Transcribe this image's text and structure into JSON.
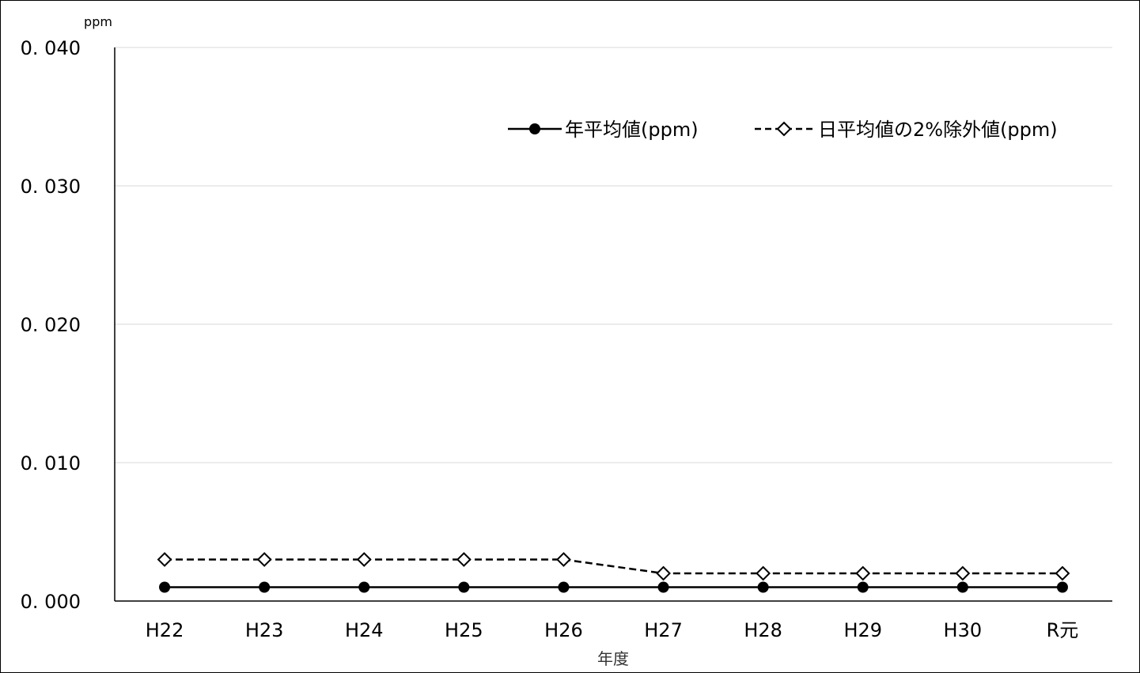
{
  "chart_data": {
    "type": "line",
    "unit_label": "ppm",
    "xlabel": "年度",
    "categories": [
      "H22",
      "H23",
      "H24",
      "H25",
      "H26",
      "H27",
      "H28",
      "H29",
      "H30",
      "R元"
    ],
    "y_ticks": [
      "0.000",
      "0.010",
      "0.020",
      "0.030",
      "0.040"
    ],
    "ylim": [
      0,
      0.04
    ],
    "grid": true,
    "legend_position": "top-right",
    "series": [
      {
        "name": "年平均値(ppm)",
        "values": [
          0.001,
          0.001,
          0.001,
          0.001,
          0.001,
          0.001,
          0.001,
          0.001,
          0.001,
          0.001
        ],
        "line_style": "solid",
        "marker": "filled-circle",
        "color": "#000000"
      },
      {
        "name": "日平均値の2%除外値(ppm)",
        "values": [
          0.003,
          0.003,
          0.003,
          0.003,
          0.003,
          0.002,
          0.002,
          0.002,
          0.002,
          0.002
        ],
        "line_style": "dashed",
        "marker": "open-diamond",
        "color": "#000000"
      }
    ]
  }
}
